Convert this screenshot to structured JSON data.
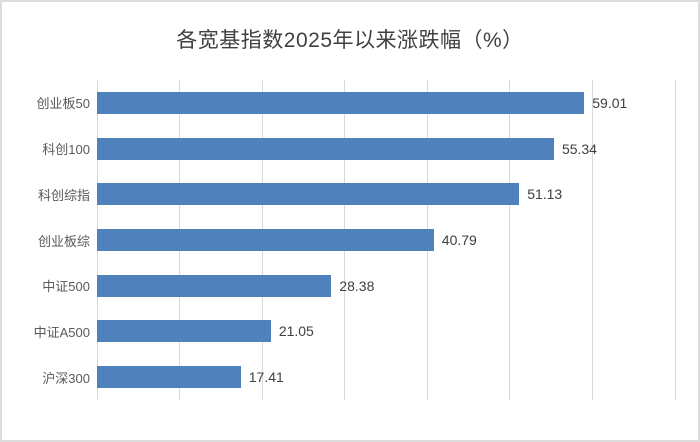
{
  "page": {
    "background": "#ffffff",
    "frame_border_color": "#dcdcdc"
  },
  "chart_data": {
    "type": "bar",
    "orientation": "horizontal",
    "title": "各宽基指数2025年以来涨跌幅（%）",
    "categories": [
      "创业板50",
      "科创100",
      "科创综指",
      "创业板综",
      "中证500",
      "中证A500",
      "沪深300"
    ],
    "values": [
      59.01,
      55.34,
      51.13,
      40.79,
      28.38,
      21.05,
      17.41
    ],
    "value_labels": [
      "59.01",
      "55.34",
      "51.13",
      "40.79",
      "28.38",
      "21.05",
      "17.41"
    ],
    "xlabel": "",
    "ylabel": "",
    "xlim": [
      0,
      70
    ],
    "gridline_step": 10,
    "grid": true,
    "legend": false,
    "axis_tick_labels_visible": false,
    "bar_color": "#4f81bd",
    "gridline_color": "#d9d9d9",
    "title_color": "#404040",
    "category_label_color": "#595959",
    "value_label_color": "#404040"
  }
}
